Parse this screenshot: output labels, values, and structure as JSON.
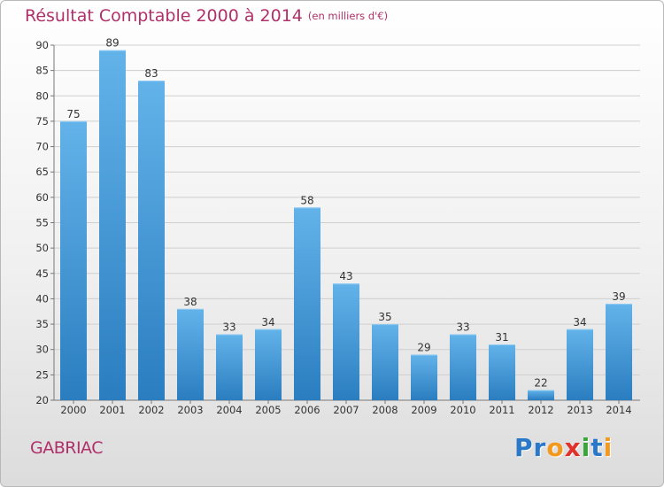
{
  "title": "Résultat Comptable 2000 à 2014",
  "unit_note": "(en milliers d'€)",
  "commune": "GABRIAC",
  "logo": {
    "text": "Proxiti",
    "letters": [
      {
        "ch": "P",
        "color": "#2b78c8"
      },
      {
        "ch": "r",
        "color": "#2b78c8"
      },
      {
        "ch": "o",
        "color": "#f39a1e"
      },
      {
        "ch": "x",
        "color": "#e0312a"
      },
      {
        "ch": "i",
        "color": "#3aa63a"
      },
      {
        "ch": "t",
        "color": "#2b78c8"
      },
      {
        "ch": "i",
        "color": "#f39a1e"
      }
    ]
  },
  "colors": {
    "bar_top": "#63b3ea",
    "bar_bottom": "#2a7dbf",
    "title": "#b0306a"
  },
  "chart_data": {
    "type": "bar",
    "title": "Résultat Comptable 2000 à 2014",
    "xlabel": "",
    "ylabel": "",
    "categories": [
      "2000",
      "2001",
      "2002",
      "2003",
      "2004",
      "2005",
      "2006",
      "2007",
      "2008",
      "2009",
      "2010",
      "2011",
      "2012",
      "2013",
      "2014"
    ],
    "values": [
      75,
      89,
      83,
      38,
      33,
      34,
      58,
      43,
      35,
      29,
      33,
      31,
      22,
      34,
      39
    ],
    "ylim": [
      20,
      90
    ],
    "yticks": [
      20,
      25,
      30,
      35,
      40,
      45,
      50,
      55,
      60,
      65,
      70,
      75,
      80,
      85,
      90
    ],
    "grid": true,
    "legend": "none"
  }
}
